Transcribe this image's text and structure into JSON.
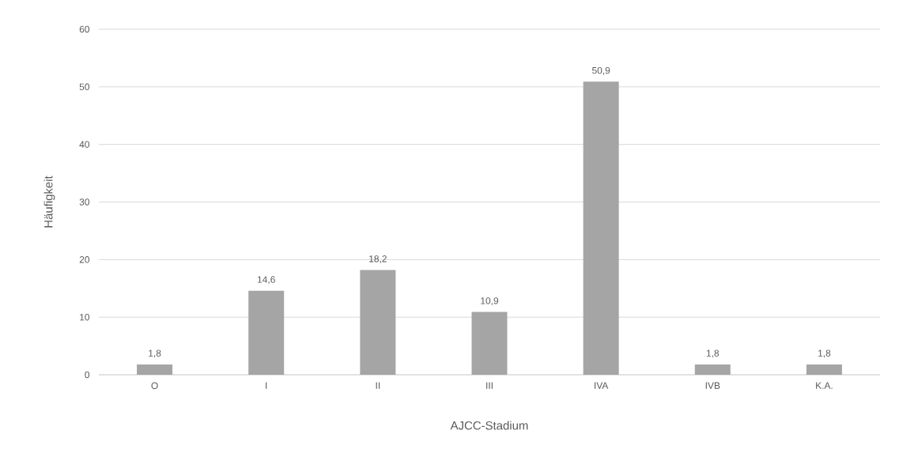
{
  "chart_data": {
    "type": "bar",
    "xlabel": "AJCC-Stadium",
    "ylabel": "Häufigkeit",
    "categories": [
      "O",
      "I",
      "II",
      "III",
      "IVA",
      "IVB",
      "K.A."
    ],
    "values": [
      1.8,
      14.6,
      18.2,
      10.9,
      50.9,
      1.8,
      1.8
    ],
    "value_labels": [
      "1,8",
      "14,6",
      "18,2",
      "10,9",
      "50,9",
      "1,8",
      "1,8"
    ],
    "color": "#a5a5a5",
    "ylim": [
      0,
      60
    ],
    "yticks": [
      0,
      10,
      20,
      30,
      40,
      50,
      60
    ],
    "grid": "y"
  }
}
